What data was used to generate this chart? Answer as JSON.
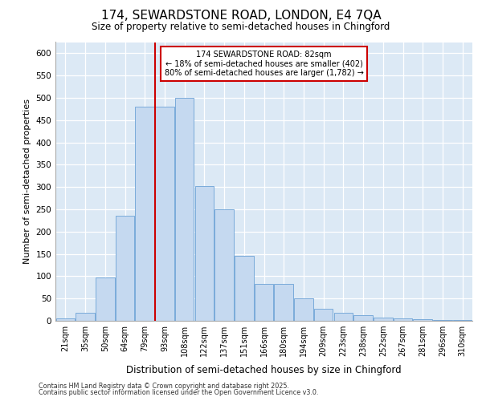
{
  "title1": "174, SEWARDSTONE ROAD, LONDON, E4 7QA",
  "title2": "Size of property relative to semi-detached houses in Chingford",
  "xlabel": "Distribution of semi-detached houses by size in Chingford",
  "ylabel": "Number of semi-detached properties",
  "categories": [
    "21sqm",
    "35sqm",
    "50sqm",
    "64sqm",
    "79sqm",
    "93sqm",
    "108sqm",
    "122sqm",
    "137sqm",
    "151sqm",
    "166sqm",
    "180sqm",
    "194sqm",
    "209sqm",
    "223sqm",
    "238sqm",
    "252sqm",
    "267sqm",
    "281sqm",
    "296sqm",
    "310sqm"
  ],
  "values": [
    5,
    18,
    97,
    235,
    480,
    480,
    500,
    303,
    250,
    145,
    83,
    83,
    50,
    27,
    18,
    12,
    8,
    5,
    3,
    2,
    1
  ],
  "bar_color": "#c5d9f0",
  "bar_edge_color": "#7aabda",
  "property_label": "174 SEWARDSTONE ROAD: 82sqm",
  "pct_smaller": 18,
  "count_smaller": 402,
  "pct_larger": 80,
  "count_larger": "1,782",
  "vline_color": "#cc0000",
  "annotation_box_color": "#cc0000",
  "ylim": [
    0,
    625
  ],
  "yticks": [
    0,
    50,
    100,
    150,
    200,
    250,
    300,
    350,
    400,
    450,
    500,
    550,
    600
  ],
  "plot_bg_color": "#dce9f5",
  "fig_bg_color": "#ffffff",
  "grid_color": "#ffffff",
  "footnote1": "Contains HM Land Registry data © Crown copyright and database right 2025.",
  "footnote2": "Contains public sector information licensed under the Open Government Licence v3.0."
}
